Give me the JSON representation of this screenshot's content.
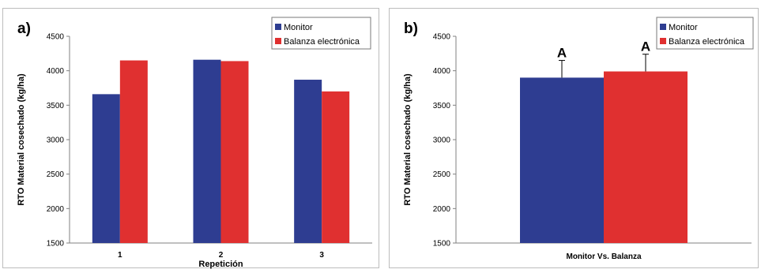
{
  "colors": {
    "monitor": "#2e3d91",
    "balanza": "#e03030",
    "axis": "#808080"
  },
  "chart_data": [
    {
      "type": "bar",
      "panel_label": "a)",
      "categories": [
        "1",
        "2",
        "3"
      ],
      "series": [
        {
          "name": "Monitor",
          "values": [
            3660,
            4160,
            3870
          ]
        },
        {
          "name": "Balanza electrónica",
          "values": [
            4150,
            4140,
            3700
          ]
        }
      ],
      "xlabel": "Repetición",
      "ylabel": "RTO Material cosechado (kg/ha)",
      "ylim": [
        1500,
        4500
      ],
      "yticks": [
        1500,
        2000,
        2500,
        3000,
        3500,
        4000,
        4500
      ],
      "grid": false,
      "legend_position": "top-right"
    },
    {
      "type": "bar",
      "panel_label": "b)",
      "categories": [
        "Monitor Vs. Balanza"
      ],
      "series": [
        {
          "name": "Monitor",
          "values": [
            3900
          ],
          "error": [
            250
          ],
          "annotation": "A"
        },
        {
          "name": "Balanza electrónica",
          "values": [
            3990
          ],
          "error": [
            250
          ],
          "annotation": "A"
        }
      ],
      "xlabel": "",
      "ylabel": "RTO Material cosechado (kg/ha)",
      "ylim": [
        1500,
        4500
      ],
      "yticks": [
        1500,
        2000,
        2500,
        3000,
        3500,
        4000,
        4500
      ],
      "grid": false,
      "legend_position": "top-right"
    }
  ]
}
